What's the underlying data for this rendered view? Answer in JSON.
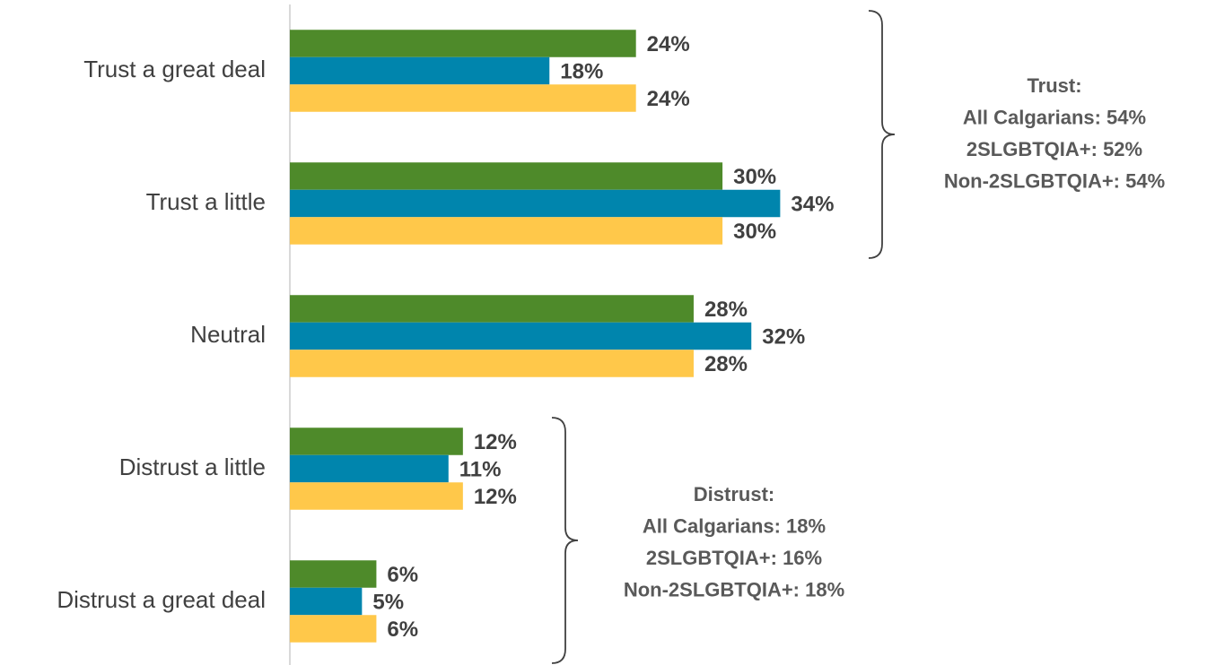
{
  "chart_data": {
    "type": "bar",
    "orientation": "horizontal",
    "categories": [
      "Trust a great deal",
      "Trust a little",
      "Neutral",
      "Distrust a little",
      "Distrust a great deal"
    ],
    "series": [
      {
        "color": "#4e8a2a",
        "values": [
          24,
          30,
          28,
          12,
          6
        ],
        "value_labels": [
          "24%",
          "30%",
          "28%",
          "12%",
          "6%"
        ]
      },
      {
        "color": "#0085ad",
        "values": [
          18,
          34,
          32,
          11,
          5
        ],
        "value_labels": [
          "18%",
          "34%",
          "32%",
          "11%",
          "5%"
        ]
      },
      {
        "color": "#ffc84a",
        "values": [
          24,
          30,
          28,
          12,
          6
        ],
        "value_labels": [
          "24%",
          "30%",
          "28%",
          "12%",
          "6%"
        ]
      }
    ],
    "annotations": [
      {
        "lines": [
          "Trust:",
          "All Calgarians: 54%",
          "2SLGBTQIA+: 52%",
          "Non-2SLGBTQIA+: 54%"
        ]
      },
      {
        "lines": [
          "Distrust:",
          "All Calgarians: 18%",
          "2SLGBTQIA+: 16%",
          "Non-2SLGBTQIA+: 18%"
        ]
      }
    ]
  }
}
